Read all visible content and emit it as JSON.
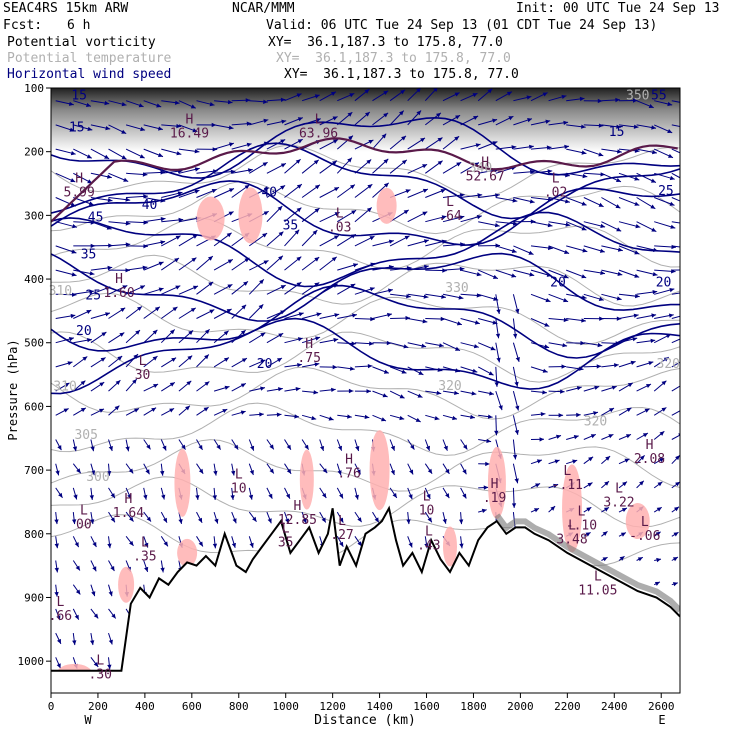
{
  "header": {
    "model": "SEAC4RS 15km ARW",
    "org": "NCAR/MMM",
    "init": "Init: 00 UTC Tue 24 Sep 13",
    "fcst_label": "Fcst:",
    "fcst_value": "6 h",
    "valid": "Valid: 06 UTC Tue 24 Sep 13 (01 CDT Tue 24 Sep 13)"
  },
  "fields": [
    {
      "name": "Potential vorticity",
      "xy": "XY=  36.1,187.3 to 175.8, 77.0",
      "color": "#000000"
    },
    {
      "name": "Potential temperature",
      "xy": "XY=  36.1,187.3 to 175.8, 77.0",
      "color": "#b0b0b0"
    },
    {
      "name": "Horizontal wind speed",
      "xy": "XY=  36.1,187.3 to 175.8, 77.0",
      "color": "#000080"
    }
  ],
  "colors": {
    "pv_contour": "#5a1a4a",
    "theta_contour": "#b0b0b0",
    "wind_contour": "#000080",
    "vectors": "#000080",
    "pv_shade": "#ffb0b0",
    "terrain": "#000000"
  },
  "chart_data": {
    "type": "cross-section",
    "xlabel": "Distance (km)",
    "ylabel": "Pressure (hPa)",
    "xlim": [
      0,
      2680
    ],
    "ylim": [
      1050,
      100
    ],
    "x_ticks": [
      "0",
      "200",
      "400",
      "600",
      "800",
      "1000",
      "1200",
      "1400",
      "1600",
      "1800",
      "2000",
      "2200",
      "2400",
      "2600"
    ],
    "y_ticks": [
      "100",
      "200",
      "300",
      "400",
      "500",
      "600",
      "700",
      "800",
      "900",
      "1000"
    ],
    "west_label": "W",
    "east_label": "E",
    "theta_labels": [
      {
        "text": "310",
        "x": 60,
        "p": 575
      },
      {
        "text": "305",
        "x": 150,
        "p": 651
      },
      {
        "text": "300",
        "x": 200,
        "p": 717
      },
      {
        "text": "310",
        "x": 40,
        "p": 425
      },
      {
        "text": "330",
        "x": 1730,
        "p": 420
      },
      {
        "text": "320",
        "x": 1700,
        "p": 574
      },
      {
        "text": "320",
        "x": 2320,
        "p": 630
      },
      {
        "text": "320",
        "x": 2630,
        "p": 540
      },
      {
        "text": "340",
        "x": 1830,
        "p": 232
      },
      {
        "text": "350",
        "x": 2500,
        "p": 118
      }
    ],
    "wind_labels": [
      {
        "text": "15",
        "x": 120,
        "p": 118
      },
      {
        "text": "15",
        "x": 110,
        "p": 168
      },
      {
        "text": "40",
        "x": 420,
        "p": 290
      },
      {
        "text": "45",
        "x": 190,
        "p": 310
      },
      {
        "text": "35",
        "x": 160,
        "p": 368
      },
      {
        "text": "25",
        "x": 180,
        "p": 432
      },
      {
        "text": "20",
        "x": 140,
        "p": 488
      },
      {
        "text": "20",
        "x": 910,
        "p": 540
      },
      {
        "text": "40",
        "x": 930,
        "p": 270
      },
      {
        "text": "35",
        "x": 1020,
        "p": 322
      },
      {
        "text": "20",
        "x": 2160,
        "p": 412
      },
      {
        "text": "20",
        "x": 2610,
        "p": 412
      },
      {
        "text": "25",
        "x": 2620,
        "p": 268
      },
      {
        "text": "55",
        "x": 2590,
        "p": 118
      },
      {
        "text": "15",
        "x": 2410,
        "p": 175
      }
    ],
    "extrema": [
      {
        "kind": "L",
        "value": "00",
        "x": 140,
        "p": 792
      },
      {
        "kind": "H",
        "value": "1.64",
        "x": 330,
        "p": 774
      },
      {
        "kind": "L",
        "value": ".35",
        "x": 400,
        "p": 842
      },
      {
        "kind": "L",
        "value": "10",
        "x": 800,
        "p": 735
      },
      {
        "kind": "H",
        "value": "12.85",
        "x": 1050,
        "p": 785
      },
      {
        "kind": "H",
        "value": ".76",
        "x": 1270,
        "p": 712
      },
      {
        "kind": "L",
        "value": ".43",
        "x": 1610,
        "p": 825
      },
      {
        "kind": "L",
        "value": "10",
        "x": 1600,
        "p": 770
      },
      {
        "kind": "H",
        "value": ".19",
        "x": 1890,
        "p": 750
      },
      {
        "kind": "L",
        "value": "-.11",
        "x": 2200,
        "p": 730
      },
      {
        "kind": "L",
        "value": "3.22",
        "x": 2420,
        "p": 757
      },
      {
        "kind": "H",
        "value": "2.08",
        "x": 2550,
        "p": 689
      },
      {
        "kind": "L",
        "value": "-.06",
        "x": 2530,
        "p": 810
      },
      {
        "kind": "L",
        "value": "11.05",
        "x": 2330,
        "p": 895
      },
      {
        "kind": "L",
        "value": ".66",
        "x": 40,
        "p": 935
      },
      {
        "kind": "L",
        "value": ".30",
        "x": 210,
        "p": 1027
      },
      {
        "kind": "H",
        "value": "1.60",
        "x": 290,
        "p": 428
      },
      {
        "kind": "L",
        "value": "30",
        "x": 390,
        "p": 557
      },
      {
        "kind": "H",
        "value": ".75",
        "x": 1100,
        "p": 530
      },
      {
        "kind": "L",
        "value": ".03",
        "x": 1230,
        "p": 325
      },
      {
        "kind": "L",
        "value": ".64",
        "x": 1700,
        "p": 307
      },
      {
        "kind": "H",
        "value": "52.67",
        "x": 1850,
        "p": 245
      },
      {
        "kind": "L",
        "value": ".02",
        "x": 2150,
        "p": 270
      },
      {
        "kind": "H",
        "value": "16.49",
        "x": 590,
        "p": 178
      },
      {
        "kind": "L",
        "value": "63.96",
        "x": 1140,
        "p": 178
      },
      {
        "kind": "H",
        "value": "5.99",
        "x": 120,
        "p": 270
      },
      {
        "kind": "L",
        "value": "35",
        "x": 1000,
        "p": 820
      },
      {
        "kind": "L",
        "value": ".27",
        "x": 1240,
        "p": 808
      },
      {
        "kind": "L",
        "value": "3.48",
        "x": 2220,
        "p": 815
      },
      {
        "kind": "L",
        "value": "-.10",
        "x": 2260,
        "p": 793
      }
    ],
    "terrain_surface": [
      [
        0,
        1015
      ],
      [
        300,
        1015
      ],
      [
        340,
        910
      ],
      [
        380,
        885
      ],
      [
        420,
        900
      ],
      [
        460,
        870
      ],
      [
        500,
        880
      ],
      [
        540,
        860
      ],
      [
        580,
        845
      ],
      [
        620,
        850
      ],
      [
        660,
        835
      ],
      [
        700,
        850
      ],
      [
        740,
        800
      ],
      [
        760,
        820
      ],
      [
        790,
        850
      ],
      [
        830,
        860
      ],
      [
        860,
        840
      ],
      [
        900,
        820
      ],
      [
        940,
        800
      ],
      [
        980,
        780
      ],
      [
        1020,
        830
      ],
      [
        1060,
        810
      ],
      [
        1100,
        790
      ],
      [
        1140,
        830
      ],
      [
        1180,
        800
      ],
      [
        1200,
        760
      ],
      [
        1230,
        850
      ],
      [
        1260,
        820
      ],
      [
        1300,
        850
      ],
      [
        1340,
        800
      ],
      [
        1380,
        790
      ],
      [
        1410,
        780
      ],
      [
        1440,
        760
      ],
      [
        1470,
        810
      ],
      [
        1500,
        850
      ],
      [
        1540,
        830
      ],
      [
        1580,
        860
      ],
      [
        1620,
        810
      ],
      [
        1660,
        840
      ],
      [
        1700,
        860
      ],
      [
        1740,
        830
      ],
      [
        1780,
        850
      ],
      [
        1820,
        810
      ],
      [
        1860,
        790
      ],
      [
        1900,
        780
      ],
      [
        1940,
        800
      ],
      [
        1980,
        790
      ],
      [
        2020,
        790
      ],
      [
        2060,
        800
      ],
      [
        2120,
        810
      ],
      [
        2200,
        830
      ],
      [
        2300,
        850
      ],
      [
        2400,
        870
      ],
      [
        2500,
        890
      ],
      [
        2580,
        900
      ],
      [
        2640,
        915
      ],
      [
        2680,
        930
      ]
    ]
  }
}
